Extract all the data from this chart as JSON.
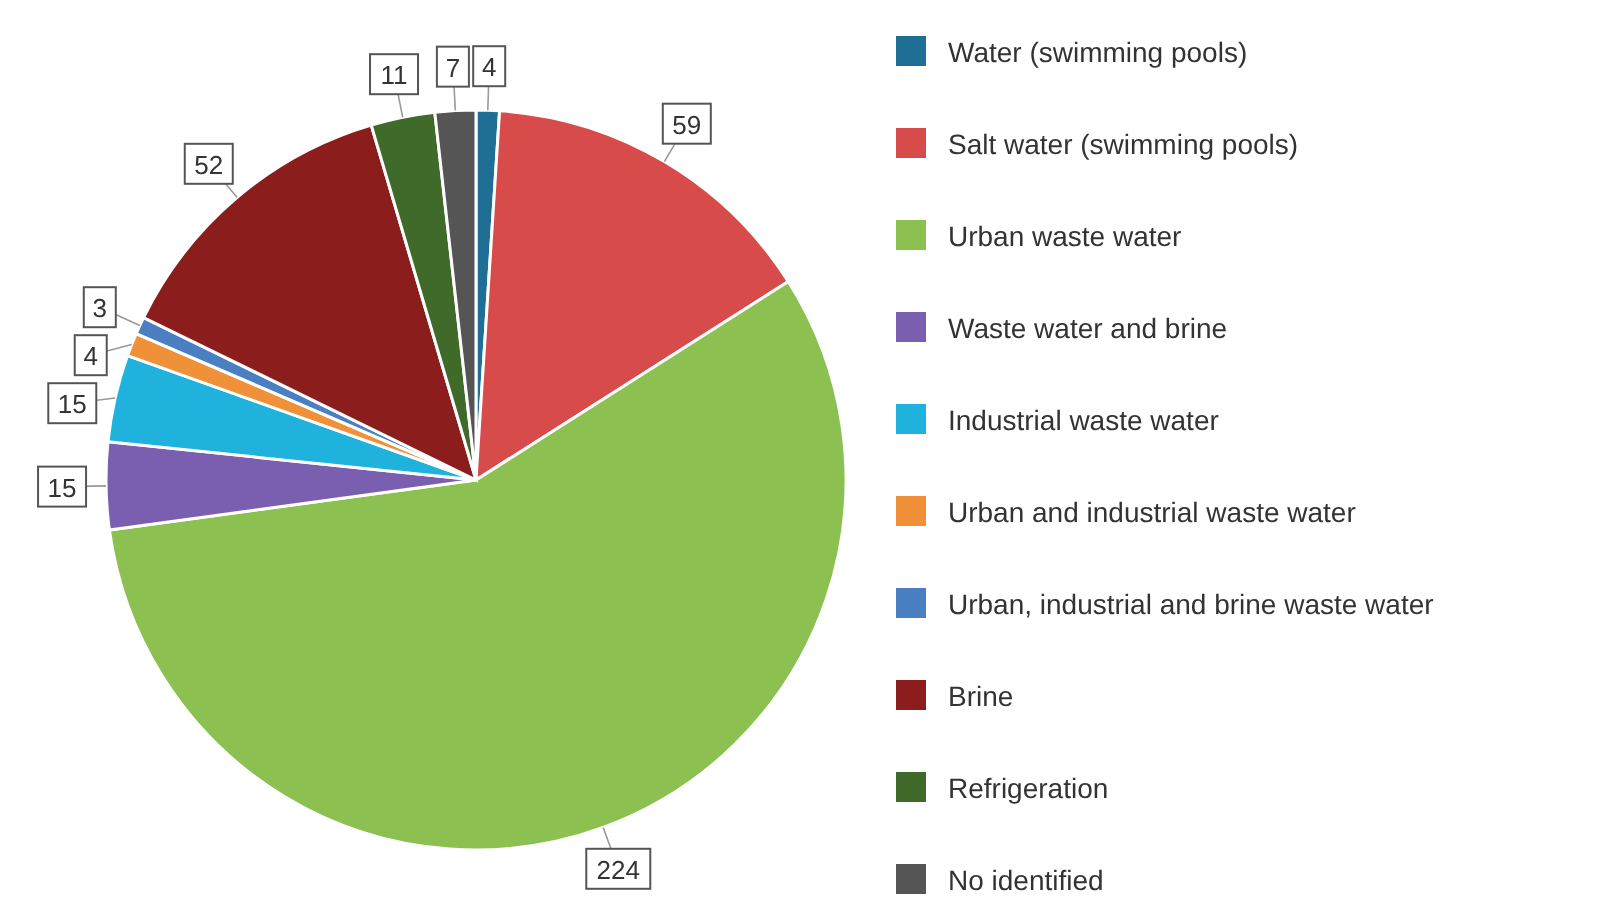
{
  "chart_data": {
    "type": "pie",
    "categories": [
      "Water (swimming pools)",
      "Salt water (swimming pools)",
      "Urban waste water",
      "Waste water and brine",
      "Industrial waste water",
      "Urban and industrial waste water",
      "Urban, industrial and brine waste water",
      "Brine",
      "Refrigeration",
      "No identified"
    ],
    "values": [
      4,
      59,
      224,
      15,
      15,
      4,
      3,
      52,
      11,
      7
    ],
    "colors": [
      "#1f6f94",
      "#d84b4b",
      "#8cc152",
      "#7a5fb0",
      "#1fb2dc",
      "#f0913a",
      "#4a7fc1",
      "#8b1d1d",
      "#3f6a2a",
      "#555555"
    ],
    "data_labels": true,
    "legend": "right"
  }
}
